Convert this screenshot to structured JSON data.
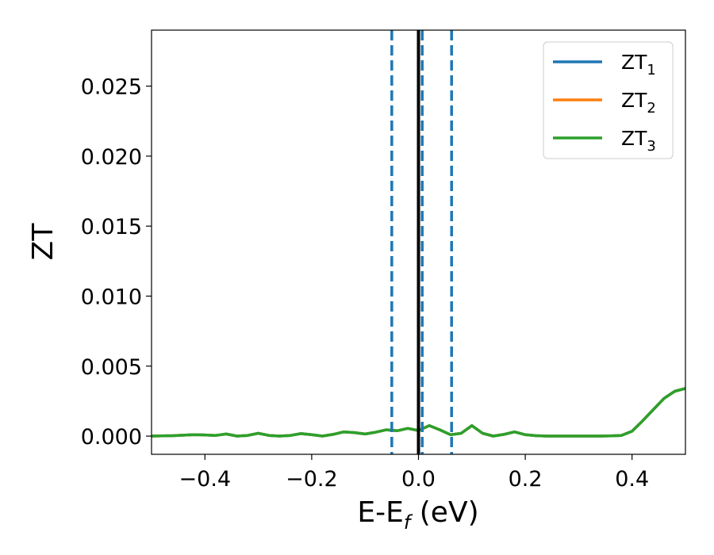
{
  "chart_data": {
    "type": "line",
    "xlabel": "E-E",
    "xlabel_sub": "f",
    "xlabel_unit": " (eV)",
    "ylabel": "ZT",
    "xlim": [
      -0.5,
      0.5
    ],
    "ylim": [
      -0.0013,
      0.029
    ],
    "xticks": [
      -0.4,
      -0.2,
      0.0,
      0.2,
      0.4
    ],
    "xtick_labels": [
      "−0.4",
      "−0.2",
      "0.0",
      "0.2",
      "0.4"
    ],
    "yticks": [
      0.0,
      0.005,
      0.01,
      0.015,
      0.02,
      0.025
    ],
    "ytick_labels": [
      "0.000",
      "0.005",
      "0.010",
      "0.015",
      "0.020",
      "0.025"
    ],
    "grid": false,
    "legend_position": "top-right",
    "x": [
      -0.5,
      -0.46,
      -0.42,
      -0.4,
      -0.38,
      -0.36,
      -0.34,
      -0.32,
      -0.3,
      -0.28,
      -0.26,
      -0.24,
      -0.22,
      -0.2,
      -0.18,
      -0.16,
      -0.14,
      -0.12,
      -0.1,
      -0.08,
      -0.06,
      -0.04,
      -0.02,
      0.0,
      0.02,
      0.04,
      0.06,
      0.08,
      0.1,
      0.12,
      0.14,
      0.16,
      0.18,
      0.2,
      0.22,
      0.24,
      0.26,
      0.28,
      0.3,
      0.32,
      0.34,
      0.36,
      0.38,
      0.4,
      0.42,
      0.44,
      0.46,
      0.48,
      0.5
    ],
    "series": [
      {
        "name": "ZT",
        "sub": "1",
        "color": "#1f77b4",
        "values": [
          0.0,
          3e-05,
          0.0001,
          8e-05,
          5e-05,
          0.00015,
          0.0,
          5e-05,
          0.0002,
          5e-05,
          0.0,
          5e-05,
          0.00018,
          0.0001,
          0.0,
          0.00012,
          0.0003,
          0.00025,
          0.00015,
          0.00028,
          0.00045,
          0.00038,
          0.00055,
          0.0004,
          0.00075,
          0.00045,
          0.0001,
          0.0002,
          0.00075,
          0.0002,
          0.0,
          0.00012,
          0.0003,
          0.0001,
          3e-05,
          0.0,
          0.0,
          0.0,
          0.0,
          0.0,
          0.0,
          2e-05,
          5e-05,
          0.00035,
          0.0011,
          0.0019,
          0.0027,
          0.0032,
          0.0034
        ]
      },
      {
        "name": "ZT",
        "sub": "2",
        "color": "#ff7f0e",
        "values": [
          0.0,
          3e-05,
          0.0001,
          8e-05,
          5e-05,
          0.00015,
          0.0,
          5e-05,
          0.0002,
          5e-05,
          0.0,
          5e-05,
          0.00018,
          0.0001,
          0.0,
          0.00012,
          0.0003,
          0.00025,
          0.00015,
          0.00028,
          0.00045,
          0.00038,
          0.00055,
          0.0004,
          0.00075,
          0.00045,
          0.0001,
          0.0002,
          0.00075,
          0.0002,
          0.0,
          0.00012,
          0.0003,
          0.0001,
          3e-05,
          0.0,
          0.0,
          0.0,
          0.0,
          0.0,
          0.0,
          2e-05,
          5e-05,
          0.00035,
          0.0011,
          0.0019,
          0.0027,
          0.0032,
          0.0034
        ]
      },
      {
        "name": "ZT",
        "sub": "3",
        "color": "#2ca02c",
        "values": [
          0.0,
          3e-05,
          0.0001,
          8e-05,
          5e-05,
          0.00015,
          0.0,
          5e-05,
          0.0002,
          5e-05,
          0.0,
          5e-05,
          0.00018,
          0.0001,
          0.0,
          0.00012,
          0.0003,
          0.00025,
          0.00015,
          0.00028,
          0.00045,
          0.00038,
          0.00055,
          0.0004,
          0.00075,
          0.00045,
          0.0001,
          0.0002,
          0.00075,
          0.0002,
          0.0,
          0.00012,
          0.0003,
          0.0001,
          3e-05,
          0.0,
          0.0,
          0.0,
          0.0,
          0.0,
          0.0,
          2e-05,
          5e-05,
          0.00035,
          0.0011,
          0.0019,
          0.0027,
          0.0032,
          0.0034
        ]
      }
    ],
    "vlines": [
      {
        "x": -0.05,
        "style": "dashed",
        "color": "#1f77b4"
      },
      {
        "x": 0.0,
        "style": "solid",
        "color": "#000000"
      },
      {
        "x": 0.007,
        "style": "dashed",
        "color": "#1f77b4"
      },
      {
        "x": 0.062,
        "style": "dashed",
        "color": "#1f77b4"
      }
    ]
  }
}
